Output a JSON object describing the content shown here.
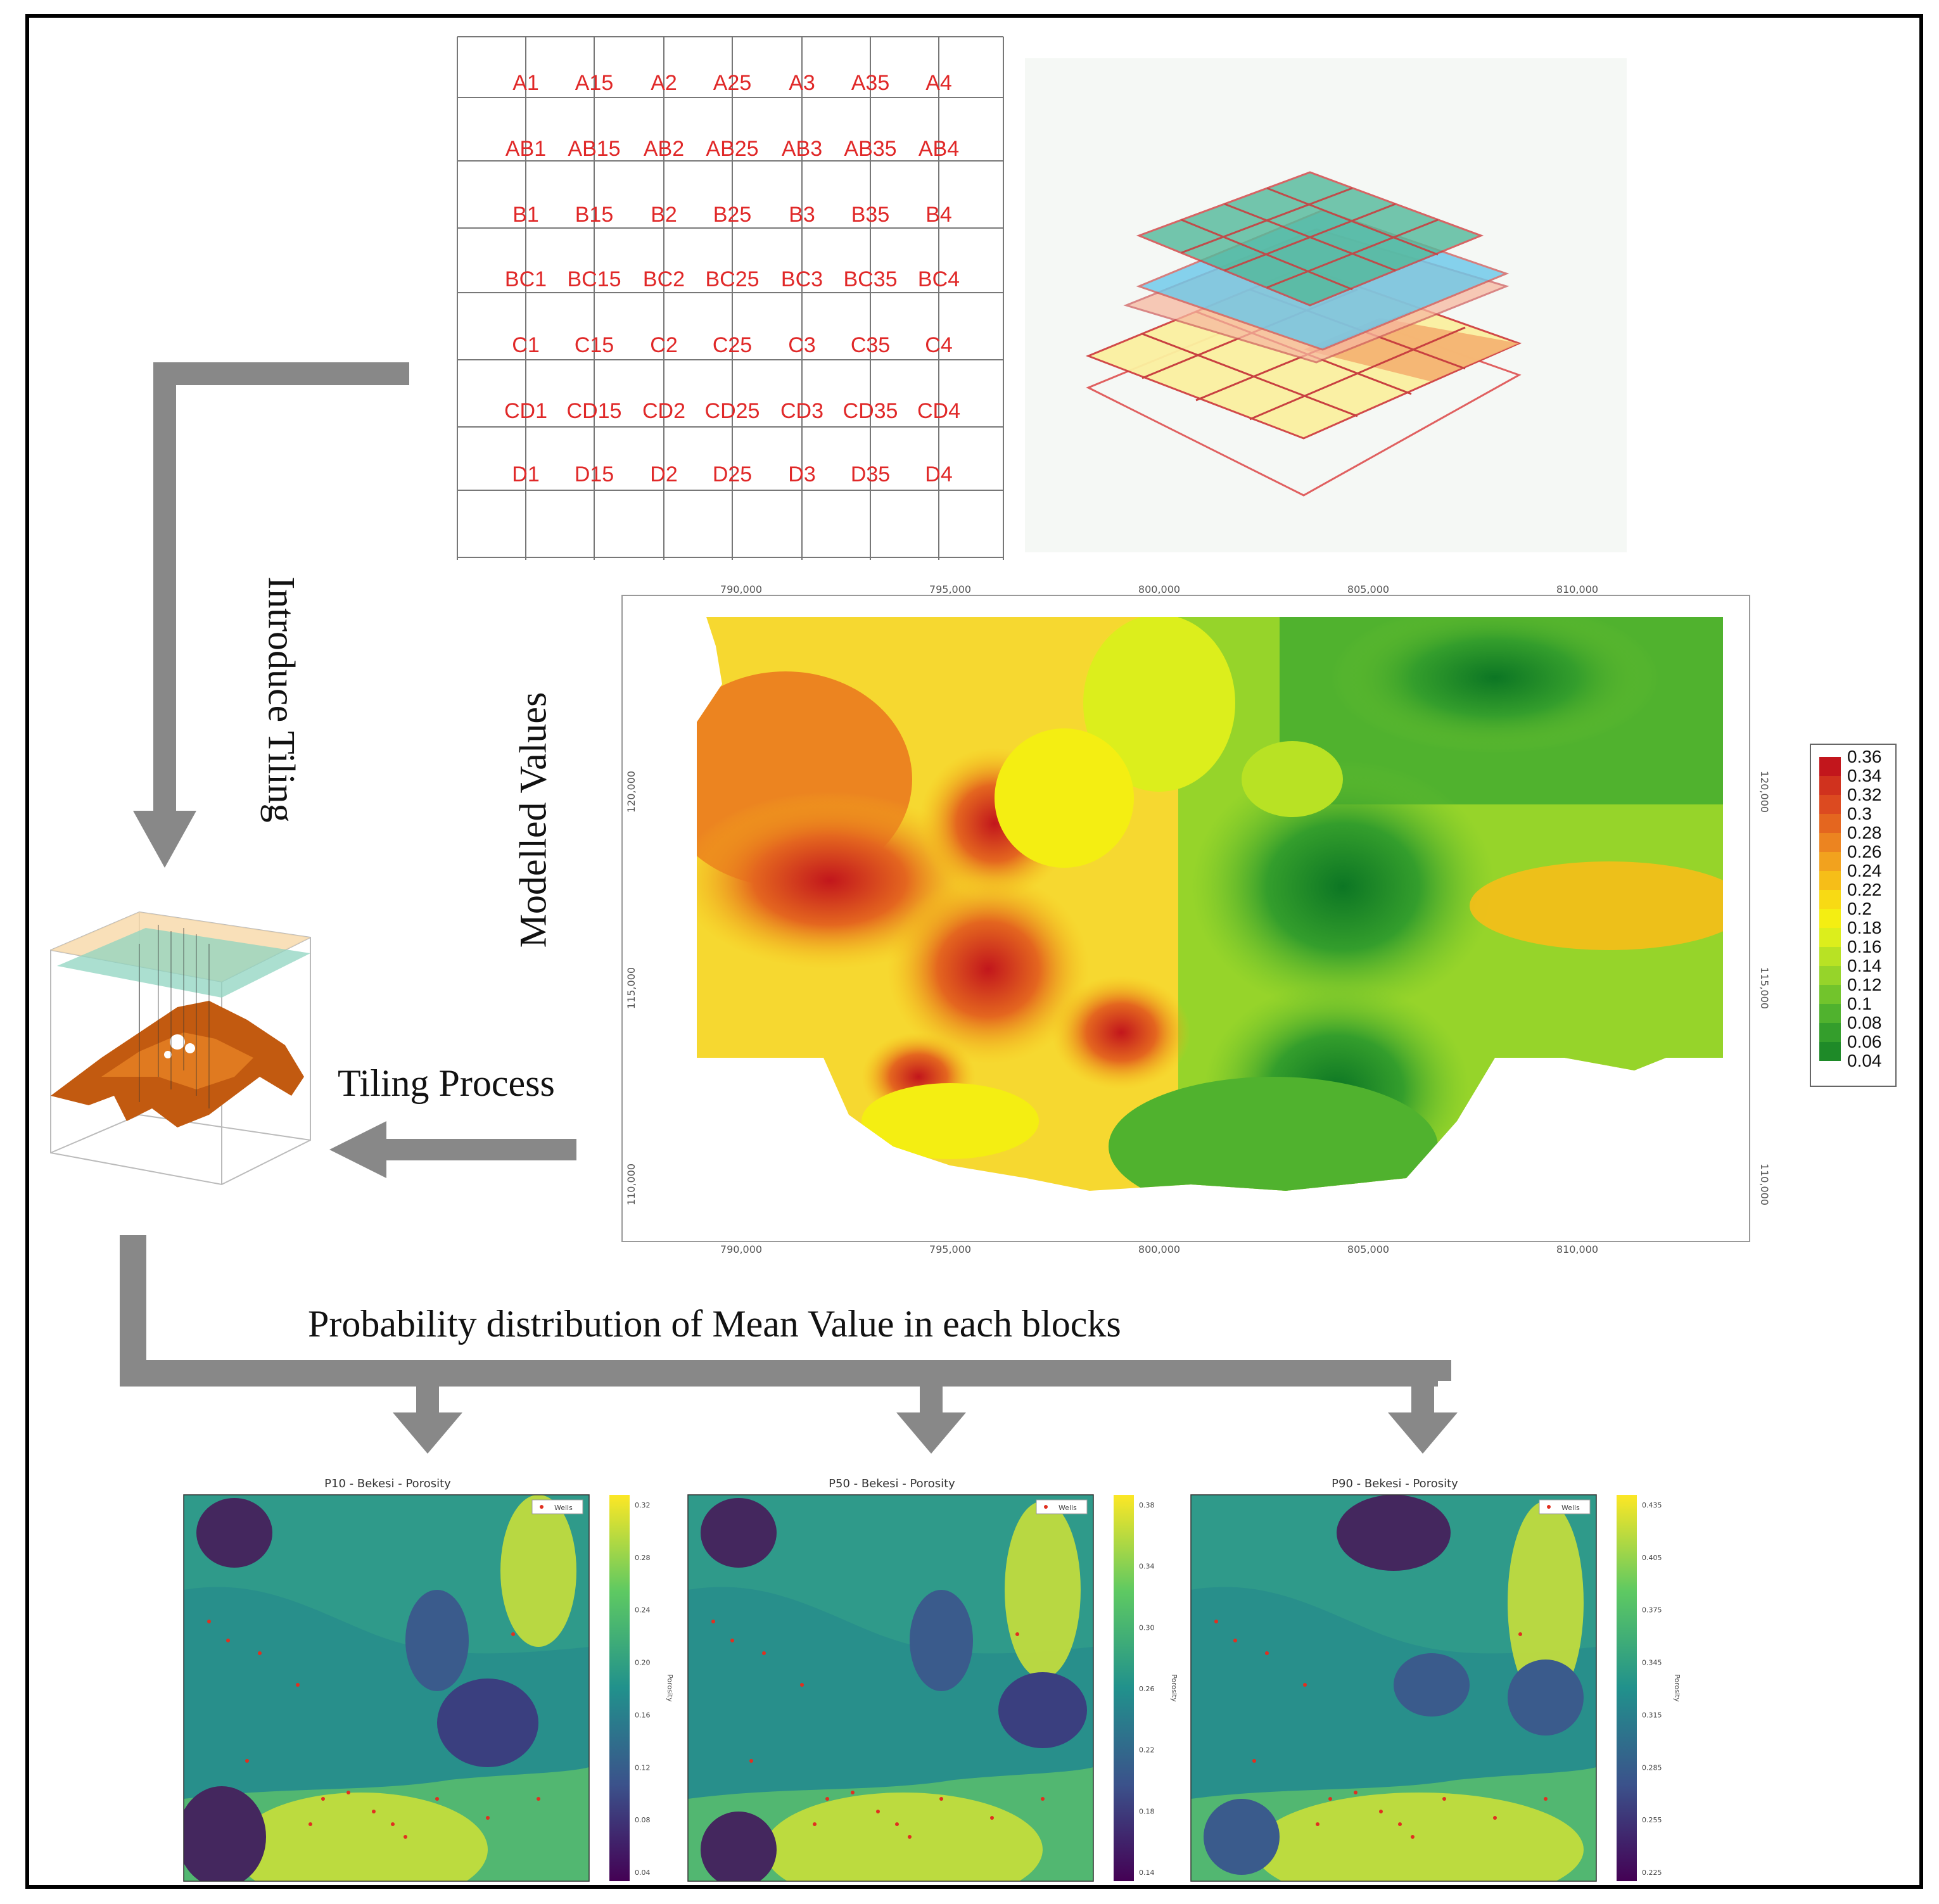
{
  "grid": {
    "rows": [
      [
        "A1",
        "A15",
        "A2",
        "A25",
        "A3",
        "A35",
        "A4"
      ],
      [
        "AB1",
        "AB15",
        "AB2",
        "AB25",
        "AB3",
        "AB35",
        "AB4"
      ],
      [
        "B1",
        "B15",
        "B2",
        "B25",
        "B3",
        "B35",
        "B4"
      ],
      [
        "BC1",
        "BC15",
        "BC2",
        "BC25",
        "BC3",
        "BC35",
        "BC4"
      ],
      [
        "C1",
        "C15",
        "C2",
        "C25",
        "C3",
        "C35",
        "C4"
      ],
      [
        "CD1",
        "CD15",
        "CD2",
        "CD25",
        "CD3",
        "CD35",
        "CD4"
      ],
      [
        "D1",
        "D15",
        "D2",
        "D25",
        "D3",
        "D35",
        "D4"
      ]
    ]
  },
  "labels": {
    "introduce_tiling": "Introduce Tiling",
    "modelled_values": "Modelled Values",
    "tiling_process": "Tiling Process",
    "probability_distribution": "Probability distribution of Mean Value in each blocks"
  },
  "main_map": {
    "x_ticks": [
      "790,000",
      "795,000",
      "800,000",
      "805,000",
      "810,000"
    ],
    "y_ticks": [
      "120,000",
      "115,000",
      "110,000"
    ],
    "colorbar": [
      "0.36",
      "0.34",
      "0.32",
      "0.3",
      "0.28",
      "0.26",
      "0.24",
      "0.22",
      "0.2",
      "0.18",
      "0.16",
      "0.14",
      "0.12",
      "0.1",
      "0.08",
      "0.06",
      "0.04"
    ],
    "colorbar_colors": [
      "#c2161c",
      "#d0321e",
      "#dc4a20",
      "#e4661f",
      "#ec8420",
      "#f2a21e",
      "#f6be18",
      "#f8da14",
      "#f4ee12",
      "#dcee1c",
      "#b8e224",
      "#96d42a",
      "#72c42c",
      "#50b22e",
      "#349e2c",
      "#1e8a28",
      "#0c7624"
    ]
  },
  "small_maps": [
    {
      "title": "P10 - Bekesi - Porosity",
      "legend": "Wells",
      "ticks": [
        "0.32",
        "0.28",
        "0.24",
        "0.20",
        "0.16",
        "0.12",
        "0.08",
        "0.04"
      ],
      "axis_label": "Porosity"
    },
    {
      "title": "P50 - Bekesi - Porosity",
      "legend": "Wells",
      "ticks": [
        "0.38",
        "0.34",
        "0.30",
        "0.26",
        "0.22",
        "0.18",
        "0.14"
      ],
      "axis_label": "Porosity"
    },
    {
      "title": "P90 - Bekesi - Porosity",
      "legend": "Wells",
      "ticks": [
        "0.435",
        "0.405",
        "0.375",
        "0.345",
        "0.315",
        "0.285",
        "0.255",
        "0.225"
      ],
      "axis_label": "Porosity"
    }
  ]
}
